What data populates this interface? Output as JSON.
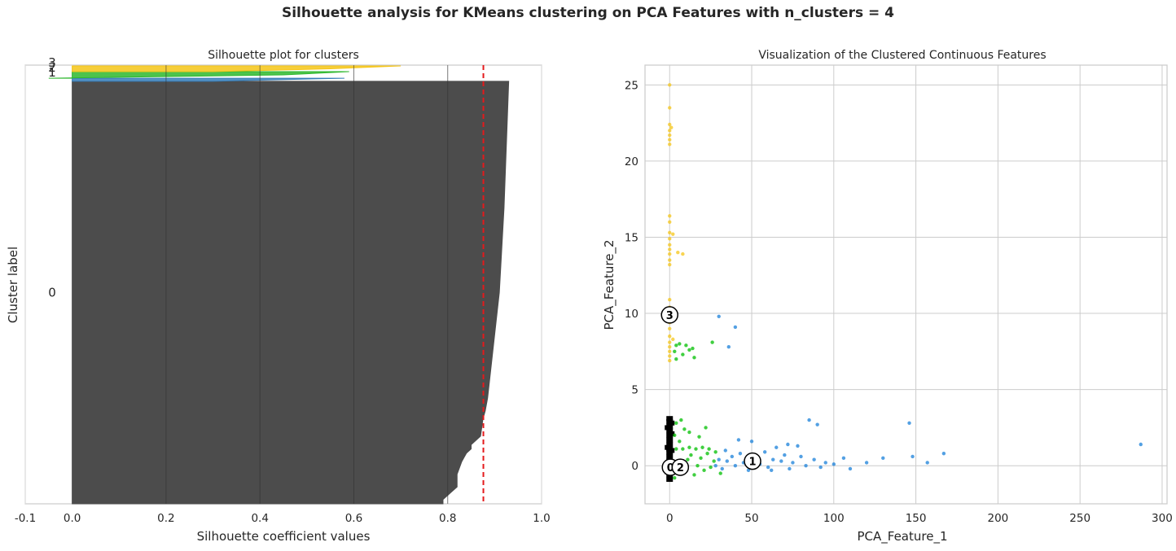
{
  "suptitle": "Silhouette analysis for KMeans clustering on PCA Features with n_clusters = 4",
  "chart_data": [
    {
      "type": "area",
      "title": "Silhouette plot for clusters",
      "xlabel": "Silhouette coefficient values",
      "ylabel": "Cluster label",
      "xlim": [
        -0.1,
        1.0
      ],
      "xticks": [
        -0.1,
        0.0,
        0.2,
        0.4,
        0.6,
        0.8,
        1.0
      ],
      "xtick_labels": [
        "-0.1",
        "0.0",
        "0.2",
        "0.4",
        "0.6",
        "0.8",
        "1.0"
      ],
      "grid": true,
      "average_silhouette": 0.876,
      "average_line_color": "#e41a1c",
      "clusters": [
        {
          "label": "0",
          "color": "#4c4c4c",
          "y_range": [
            0.035,
            1.0
          ],
          "profile": [
            [
              0.0,
              0.93
            ],
            [
              0.3,
              0.92
            ],
            [
              0.5,
              0.91
            ],
            [
              0.65,
              0.895
            ],
            [
              0.75,
              0.885
            ],
            [
              0.78,
              0.88
            ],
            [
              0.8,
              0.875
            ],
            [
              0.84,
              0.87
            ],
            [
              0.86,
              0.85
            ],
            [
              0.87,
              0.85
            ],
            [
              0.88,
              0.84
            ],
            [
              0.89,
              0.835
            ],
            [
              0.9,
              0.83
            ],
            [
              0.93,
              0.82
            ],
            [
              0.96,
              0.82
            ],
            [
              0.97,
              0.81
            ],
            [
              0.99,
              0.79
            ],
            [
              1.0,
              0.79
            ]
          ]
        },
        {
          "label": "1",
          "color": "#377eb8",
          "y_range": [
            0.028,
            0.035
          ],
          "profile": [
            [
              0.0,
              0.58
            ],
            [
              1.0,
              0.3
            ]
          ]
        },
        {
          "label": "2",
          "color": "#2eb82e",
          "y_range": [
            0.013,
            0.028
          ],
          "profile": [
            [
              0.0,
              0.59
            ],
            [
              0.5,
              0.45
            ],
            [
              1.0,
              -0.05
            ]
          ]
        },
        {
          "label": "3",
          "color": "#f5c518",
          "y_range": [
            0.0,
            0.013
          ],
          "profile": [
            [
              0.0,
              0.7
            ],
            [
              0.5,
              0.55
            ],
            [
              1.0,
              0.3
            ]
          ]
        }
      ]
    },
    {
      "type": "scatter",
      "title": "Visualization of the Clustered Continuous Features",
      "xlabel": "PCA_Feature_1",
      "ylabel": "PCA_Feature_2",
      "xlim": [
        -15,
        303
      ],
      "ylim": [
        -2.5,
        26.3
      ],
      "xticks": [
        0,
        50,
        100,
        150,
        200,
        250,
        300
      ],
      "yticks": [
        0,
        5,
        10,
        15,
        20,
        25
      ],
      "grid": true,
      "series": [
        {
          "color": "#000000",
          "points": [
            [
              0,
              -0.9
            ],
            [
              0,
              -0.6
            ],
            [
              0,
              -0.3
            ],
            [
              0,
              0
            ],
            [
              0,
              0.3
            ],
            [
              0,
              0.6
            ],
            [
              0,
              0.9
            ],
            [
              0,
              1.1
            ],
            [
              0,
              1.4
            ],
            [
              0,
              1.7
            ],
            [
              0,
              2
            ],
            [
              0,
              2.3
            ],
            [
              0,
              2.6
            ],
            [
              0,
              2.9
            ],
            [
              0,
              3.1
            ],
            [
              1,
              0.1
            ],
            [
              1,
              1
            ],
            [
              1,
              2.1
            ],
            [
              1,
              2.8
            ],
            [
              -1,
              -0.4
            ],
            [
              -1,
              1.2
            ],
            [
              -1,
              2.5
            ]
          ]
        },
        {
          "color": "#00bf00",
          "points": [
            [
              3,
              -0.8
            ],
            [
              5,
              -0.5
            ],
            [
              7,
              -0.2
            ],
            [
              9,
              0.1
            ],
            [
              11,
              0.4
            ],
            [
              13,
              0.7
            ],
            [
              15,
              -0.6
            ],
            [
              17,
              0
            ],
            [
              19,
              0.5
            ],
            [
              21,
              -0.3
            ],
            [
              23,
              0.8
            ],
            [
              25,
              -0.1
            ],
            [
              27,
              0.3
            ],
            [
              4,
              1.1
            ],
            [
              8,
              1.1
            ],
            [
              12,
              1.2
            ],
            [
              16,
              1.1
            ],
            [
              20,
              1.2
            ],
            [
              24,
              1.1
            ],
            [
              3,
              2
            ],
            [
              6,
              1.6
            ],
            [
              9,
              2.4
            ],
            [
              4,
              2.8
            ],
            [
              7,
              3
            ],
            [
              12,
              2.2
            ],
            [
              18,
              1.9
            ],
            [
              22,
              2.5
            ],
            [
              4,
              7
            ],
            [
              8,
              7.3
            ],
            [
              12,
              7.6
            ],
            [
              15,
              7.1
            ],
            [
              6,
              8
            ],
            [
              10,
              7.9
            ],
            [
              4,
              7.9
            ],
            [
              14,
              7.7
            ],
            [
              3,
              7.5
            ],
            [
              26,
              8.1
            ],
            [
              31,
              -0.5
            ],
            [
              28,
              0.9
            ]
          ]
        },
        {
          "color": "#1a80d9",
          "points": [
            [
              28,
              0
            ],
            [
              30,
              0.4
            ],
            [
              32,
              -0.2
            ],
            [
              35,
              0.3
            ],
            [
              38,
              0.6
            ],
            [
              40,
              0
            ],
            [
              43,
              0.8
            ],
            [
              45,
              0.2
            ],
            [
              48,
              -0.3
            ],
            [
              52,
              0.5
            ],
            [
              55,
              0.1
            ],
            [
              58,
              0.9
            ],
            [
              60,
              -0.1
            ],
            [
              63,
              0.4
            ],
            [
              65,
              1.2
            ],
            [
              68,
              0.3
            ],
            [
              70,
              0.7
            ],
            [
              72,
              1.4
            ],
            [
              75,
              0.2
            ],
            [
              78,
              1.3
            ],
            [
              80,
              0.6
            ],
            [
              83,
              0
            ],
            [
              85,
              3
            ],
            [
              88,
              0.4
            ],
            [
              90,
              2.7
            ],
            [
              95,
              0.2
            ],
            [
              100,
              0.1
            ],
            [
              106,
              0.5
            ],
            [
              120,
              0.2
            ],
            [
              130,
              0.5
            ],
            [
              146,
              2.8
            ],
            [
              148,
              0.6
            ],
            [
              157,
              0.2
            ],
            [
              167,
              0.8
            ],
            [
              287,
              1.4
            ],
            [
              34,
              1
            ],
            [
              42,
              1.7
            ],
            [
              30,
              9.8
            ],
            [
              40,
              9.1
            ],
            [
              36,
              7.8
            ],
            [
              50,
              1.6
            ],
            [
              62,
              -0.3
            ],
            [
              73,
              -0.2
            ],
            [
              92,
              -0.1
            ],
            [
              110,
              -0.2
            ]
          ]
        },
        {
          "color": "#f5c518",
          "points": [
            [
              0,
              25
            ],
            [
              0,
              23.5
            ],
            [
              0,
              22.4
            ],
            [
              0,
              22
            ],
            [
              0,
              21.7
            ],
            [
              0,
              21.4
            ],
            [
              0,
              21.1
            ],
            [
              0,
              16.4
            ],
            [
              0,
              16
            ],
            [
              0,
              15.3
            ],
            [
              0,
              14.9
            ],
            [
              0,
              14.5
            ],
            [
              0,
              14.2
            ],
            [
              0,
              13.9
            ],
            [
              0,
              13.5
            ],
            [
              0,
              13.2
            ],
            [
              0,
              10.9
            ],
            [
              0,
              10.4
            ],
            [
              0,
              9.4
            ],
            [
              0,
              9
            ],
            [
              0,
              8.5
            ],
            [
              0,
              8.1
            ],
            [
              0,
              7.8
            ],
            [
              0,
              7.5
            ],
            [
              0,
              7.2
            ],
            [
              0,
              6.9
            ],
            [
              2,
              8.3
            ],
            [
              3,
              10
            ],
            [
              5,
              14
            ],
            [
              8,
              13.9
            ],
            [
              2,
              15.2
            ],
            [
              1,
              22.2
            ]
          ]
        }
      ],
      "centers": [
        {
          "label": "0",
          "x": 0.5,
          "y": -0.1
        },
        {
          "label": "1",
          "x": 50.5,
          "y": 0.3
        },
        {
          "label": "2",
          "x": 6.5,
          "y": -0.1
        },
        {
          "label": "3",
          "x": 0,
          "y": 9.9
        }
      ]
    }
  ]
}
